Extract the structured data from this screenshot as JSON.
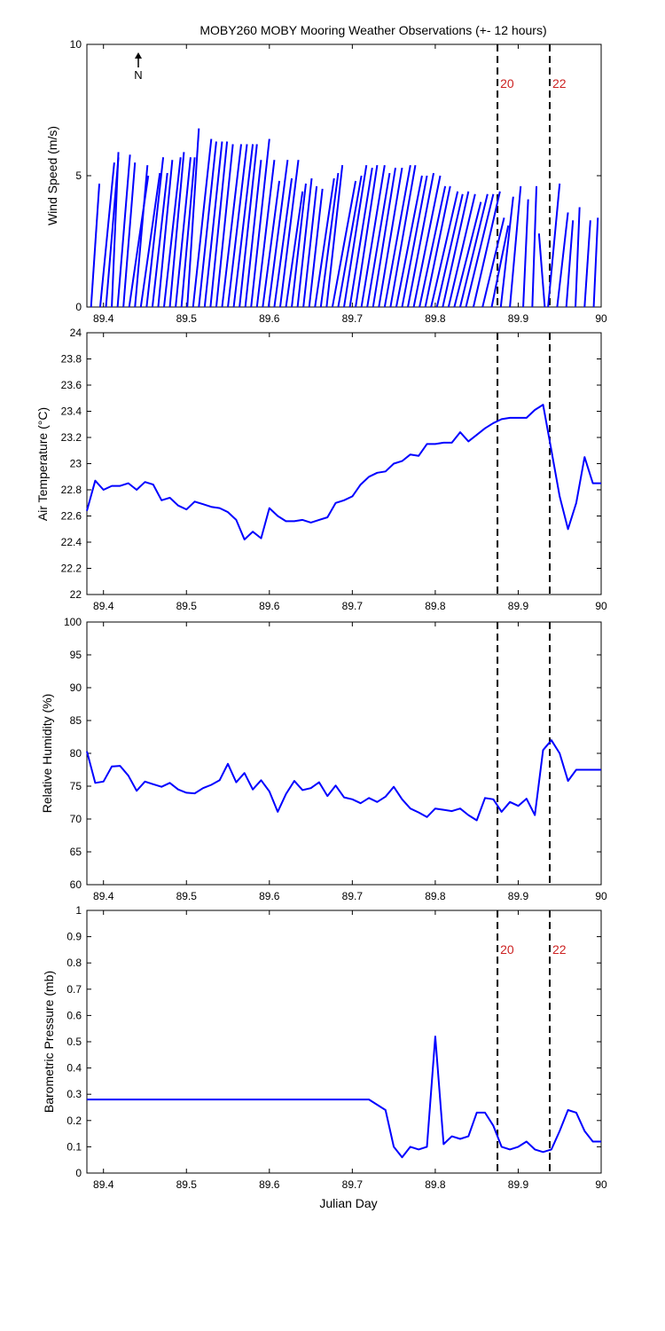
{
  "figure": {
    "title": "MOBY260 MOBY Mooring Weather Observations (+- 12 hours)",
    "north_label": "N",
    "line_color": "#0000ff",
    "marker_label_color": "#cc2222"
  },
  "chart_data": [
    {
      "type": "line",
      "ylabel": "Wind Speed (m/s)",
      "xlabel": "",
      "xlim": [
        89.38,
        90.0
      ],
      "ylim": [
        0,
        10
      ],
      "xticks": [
        89.4,
        89.5,
        89.6,
        89.7,
        89.8,
        89.9,
        90
      ],
      "xtick_labels": [
        "89.4",
        "89.5",
        "89.6",
        "89.7",
        "89.8",
        "89.9",
        "90"
      ],
      "yticks": [
        0,
        5,
        10
      ],
      "ytick_labels": [
        "0",
        "5",
        "10"
      ],
      "grid": false,
      "vertical_markers": [
        {
          "x": 89.875,
          "label": "20"
        },
        {
          "x": 89.938,
          "label": "22"
        }
      ],
      "wind_sticks": [
        {
          "x": 89.385,
          "x2": 89.395,
          "y2": 4.7
        },
        {
          "x": 89.396,
          "x2": 89.413,
          "y2": 5.5
        },
        {
          "x": 89.403,
          "x2": 89.418,
          "y2": 5.7
        },
        {
          "x": 89.41,
          "x2": 89.418,
          "y2": 5.9
        },
        {
          "x": 89.417,
          "x2": 89.432,
          "y2": 5.8
        },
        {
          "x": 89.424,
          "x2": 89.438,
          "y2": 5.5
        },
        {
          "x": 89.431,
          "x2": 89.454,
          "y2": 5.0
        },
        {
          "x": 89.438,
          "x2": 89.453,
          "y2": 5.4
        },
        {
          "x": 89.445,
          "x2": 89.468,
          "y2": 5.1
        },
        {
          "x": 89.452,
          "x2": 89.472,
          "y2": 5.7
        },
        {
          "x": 89.459,
          "x2": 89.477,
          "y2": 5.1
        },
        {
          "x": 89.466,
          "x2": 89.483,
          "y2": 5.6
        },
        {
          "x": 89.473,
          "x2": 89.493,
          "y2": 5.7
        },
        {
          "x": 89.48,
          "x2": 89.497,
          "y2": 5.9
        },
        {
          "x": 89.487,
          "x2": 89.505,
          "y2": 5.7
        },
        {
          "x": 89.494,
          "x2": 89.51,
          "y2": 5.7
        },
        {
          "x": 89.501,
          "x2": 89.515,
          "y2": 6.8
        },
        {
          "x": 89.508,
          "x2": 89.53,
          "y2": 6.4
        },
        {
          "x": 89.515,
          "x2": 89.536,
          "y2": 6.3
        },
        {
          "x": 89.522,
          "x2": 89.543,
          "y2": 6.3
        },
        {
          "x": 89.529,
          "x2": 89.549,
          "y2": 6.3
        },
        {
          "x": 89.536,
          "x2": 89.556,
          "y2": 6.2
        },
        {
          "x": 89.543,
          "x2": 89.566,
          "y2": 6.2
        },
        {
          "x": 89.55,
          "x2": 89.573,
          "y2": 6.2
        },
        {
          "x": 89.557,
          "x2": 89.58,
          "y2": 6.2
        },
        {
          "x": 89.564,
          "x2": 89.585,
          "y2": 6.2
        },
        {
          "x": 89.571,
          "x2": 89.59,
          "y2": 5.6
        },
        {
          "x": 89.578,
          "x2": 89.6,
          "y2": 6.4
        },
        {
          "x": 89.585,
          "x2": 89.606,
          "y2": 5.6
        },
        {
          "x": 89.592,
          "x2": 89.612,
          "y2": 4.8
        },
        {
          "x": 89.599,
          "x2": 89.622,
          "y2": 5.6
        },
        {
          "x": 89.606,
          "x2": 89.627,
          "y2": 4.9
        },
        {
          "x": 89.613,
          "x2": 89.635,
          "y2": 5.6
        },
        {
          "x": 89.62,
          "x2": 89.64,
          "y2": 4.4
        },
        {
          "x": 89.627,
          "x2": 89.644,
          "y2": 4.7
        },
        {
          "x": 89.634,
          "x2": 89.651,
          "y2": 4.9
        },
        {
          "x": 89.641,
          "x2": 89.657,
          "y2": 4.6
        },
        {
          "x": 89.648,
          "x2": 89.664,
          "y2": 4.5
        },
        {
          "x": 89.655,
          "x2": 89.678,
          "y2": 4.9
        },
        {
          "x": 89.662,
          "x2": 89.683,
          "y2": 5.1
        },
        {
          "x": 89.669,
          "x2": 89.688,
          "y2": 5.4
        },
        {
          "x": 89.676,
          "x2": 89.704,
          "y2": 4.8
        },
        {
          "x": 89.683,
          "x2": 89.711,
          "y2": 5.0
        },
        {
          "x": 89.69,
          "x2": 89.717,
          "y2": 5.4
        },
        {
          "x": 89.697,
          "x2": 89.724,
          "y2": 5.3
        },
        {
          "x": 89.704,
          "x2": 89.73,
          "y2": 5.4
        },
        {
          "x": 89.711,
          "x2": 89.739,
          "y2": 5.4
        },
        {
          "x": 89.718,
          "x2": 89.745,
          "y2": 5.1
        },
        {
          "x": 89.725,
          "x2": 89.752,
          "y2": 5.3
        },
        {
          "x": 89.732,
          "x2": 89.76,
          "y2": 5.3
        },
        {
          "x": 89.739,
          "x2": 89.77,
          "y2": 5.4
        },
        {
          "x": 89.746,
          "x2": 89.776,
          "y2": 5.4
        },
        {
          "x": 89.753,
          "x2": 89.784,
          "y2": 5.0
        },
        {
          "x": 89.76,
          "x2": 89.79,
          "y2": 5.0
        },
        {
          "x": 89.767,
          "x2": 89.798,
          "y2": 5.1
        },
        {
          "x": 89.774,
          "x2": 89.806,
          "y2": 5.0
        },
        {
          "x": 89.781,
          "x2": 89.812,
          "y2": 4.6
        },
        {
          "x": 89.788,
          "x2": 89.818,
          "y2": 4.6
        },
        {
          "x": 89.795,
          "x2": 89.827,
          "y2": 4.4
        },
        {
          "x": 89.802,
          "x2": 89.833,
          "y2": 4.3
        },
        {
          "x": 89.809,
          "x2": 89.84,
          "y2": 4.4
        },
        {
          "x": 89.816,
          "x2": 89.848,
          "y2": 4.3
        },
        {
          "x": 89.823,
          "x2": 89.855,
          "y2": 4.0
        },
        {
          "x": 89.83,
          "x2": 89.863,
          "y2": 4.3
        },
        {
          "x": 89.837,
          "x2": 89.87,
          "y2": 4.3
        },
        {
          "x": 89.846,
          "x2": 89.878,
          "y2": 4.4
        },
        {
          "x": 89.857,
          "x2": 89.883,
          "y2": 3.4
        },
        {
          "x": 89.868,
          "x2": 89.888,
          "y2": 3.1
        },
        {
          "x": 89.879,
          "x2": 89.894,
          "y2": 4.2
        },
        {
          "x": 89.89,
          "x2": 89.903,
          "y2": 4.6
        },
        {
          "x": 89.906,
          "x2": 89.912,
          "y2": 4.1
        },
        {
          "x": 89.917,
          "x2": 89.922,
          "y2": 4.6
        },
        {
          "x": 89.932,
          "x2": 89.925,
          "y2": 2.8
        },
        {
          "x": 89.936,
          "x2": 89.95,
          "y2": 4.7
        },
        {
          "x": 89.947,
          "x2": 89.96,
          "y2": 3.6
        },
        {
          "x": 89.958,
          "x2": 89.966,
          "y2": 3.3
        },
        {
          "x": 89.969,
          "x2": 89.974,
          "y2": 3.8
        },
        {
          "x": 89.98,
          "x2": 89.987,
          "y2": 3.3
        },
        {
          "x": 89.991,
          "x2": 89.996,
          "y2": 3.4
        }
      ]
    },
    {
      "type": "line",
      "ylabel": "Air Temperature (°C)",
      "xlabel": "",
      "xlim": [
        89.38,
        90.0
      ],
      "ylim": [
        22,
        24
      ],
      "xticks": [
        89.4,
        89.5,
        89.6,
        89.7,
        89.8,
        89.9,
        90
      ],
      "xtick_labels": [
        "89.4",
        "89.5",
        "89.6",
        "89.7",
        "89.8",
        "89.9",
        "90"
      ],
      "yticks": [
        22,
        22.2,
        22.4,
        22.6,
        22.8,
        23,
        23.2,
        23.4,
        23.6,
        23.8,
        24
      ],
      "ytick_labels": [
        "22",
        "22.2",
        "22.4",
        "22.6",
        "22.8",
        "23",
        "23.2",
        "23.4",
        "23.6",
        "23.8",
        "24"
      ],
      "grid": false,
      "vertical_markers": [
        {
          "x": 89.875,
          "label": ""
        },
        {
          "x": 89.938,
          "label": ""
        }
      ],
      "x": [
        89.38,
        89.39,
        89.4,
        89.41,
        89.42,
        89.43,
        89.44,
        89.45,
        89.46,
        89.47,
        89.48,
        89.49,
        89.5,
        89.51,
        89.52,
        89.53,
        89.54,
        89.55,
        89.56,
        89.57,
        89.58,
        89.59,
        89.6,
        89.61,
        89.62,
        89.63,
        89.64,
        89.65,
        89.66,
        89.67,
        89.68,
        89.69,
        89.7,
        89.71,
        89.72,
        89.73,
        89.74,
        89.75,
        89.76,
        89.77,
        89.78,
        89.79,
        89.8,
        89.81,
        89.82,
        89.83,
        89.84,
        89.85,
        89.86,
        89.87,
        89.88,
        89.89,
        89.9,
        89.91,
        89.92,
        89.93,
        89.94,
        89.95,
        89.96,
        89.97,
        89.98,
        89.99,
        90.0
      ],
      "y": [
        22.64,
        22.87,
        22.8,
        22.83,
        22.83,
        22.85,
        22.8,
        22.86,
        22.84,
        22.72,
        22.74,
        22.68,
        22.65,
        22.71,
        22.69,
        22.67,
        22.66,
        22.63,
        22.57,
        22.42,
        22.48,
        22.43,
        22.66,
        22.6,
        22.56,
        22.56,
        22.57,
        22.55,
        22.57,
        22.59,
        22.7,
        22.72,
        22.75,
        22.84,
        22.9,
        22.93,
        22.94,
        23.0,
        23.02,
        23.07,
        23.06,
        23.15,
        23.15,
        23.16,
        23.16,
        23.24,
        23.17,
        23.22,
        23.27,
        23.31,
        23.34,
        23.35,
        23.35,
        23.35,
        23.41,
        23.45,
        23.1,
        22.75,
        22.5,
        22.7,
        23.05,
        22.85,
        22.85
      ]
    },
    {
      "type": "line",
      "ylabel": "Relative Humidity (%)",
      "xlabel": "",
      "xlim": [
        89.38,
        90.0
      ],
      "ylim": [
        60,
        100
      ],
      "xticks": [
        89.4,
        89.5,
        89.6,
        89.7,
        89.8,
        89.9,
        90
      ],
      "xtick_labels": [
        "89.4",
        "89.5",
        "89.6",
        "89.7",
        "89.8",
        "89.9",
        "90"
      ],
      "yticks": [
        60,
        65,
        70,
        75,
        80,
        85,
        90,
        95,
        100
      ],
      "ytick_labels": [
        "60",
        "65",
        "70",
        "75",
        "80",
        "85",
        "90",
        "95",
        "100"
      ],
      "grid": false,
      "vertical_markers": [
        {
          "x": 89.875,
          "label": ""
        },
        {
          "x": 89.938,
          "label": ""
        }
      ],
      "x": [
        89.38,
        89.39,
        89.4,
        89.41,
        89.42,
        89.43,
        89.44,
        89.45,
        89.46,
        89.47,
        89.48,
        89.49,
        89.5,
        89.51,
        89.52,
        89.53,
        89.54,
        89.55,
        89.56,
        89.57,
        89.58,
        89.59,
        89.6,
        89.61,
        89.62,
        89.63,
        89.64,
        89.65,
        89.66,
        89.67,
        89.68,
        89.69,
        89.7,
        89.71,
        89.72,
        89.73,
        89.74,
        89.75,
        89.76,
        89.77,
        89.78,
        89.79,
        89.8,
        89.81,
        89.82,
        89.83,
        89.84,
        89.85,
        89.86,
        89.87,
        89.88,
        89.89,
        89.9,
        89.91,
        89.92,
        89.93,
        89.94,
        89.95,
        89.96,
        89.97,
        89.98,
        89.99,
        90.0
      ],
      "y": [
        80.3,
        75.5,
        75.7,
        78.0,
        78.1,
        76.6,
        74.3,
        75.7,
        75.3,
        74.9,
        75.5,
        74.5,
        74.0,
        73.9,
        74.7,
        75.2,
        75.9,
        78.4,
        75.6,
        77.0,
        74.5,
        75.9,
        74.2,
        71.1,
        73.8,
        75.8,
        74.4,
        74.7,
        75.6,
        73.5,
        75.1,
        73.3,
        73.0,
        72.4,
        73.2,
        72.6,
        73.4,
        74.9,
        73.0,
        71.6,
        71.0,
        70.3,
        71.6,
        71.4,
        71.2,
        71.6,
        70.6,
        69.8,
        73.2,
        73.0,
        71.1,
        72.6,
        72.0,
        73.1,
        70.6,
        80.5,
        82.0,
        80.0,
        75.8,
        77.5,
        77.5,
        77.5,
        77.5
      ]
    },
    {
      "type": "line",
      "ylabel": "Barometric Pressure (mb)",
      "xlabel": "Julian Day",
      "xlim": [
        89.38,
        90.0
      ],
      "ylim": [
        0,
        1
      ],
      "xticks": [
        89.4,
        89.5,
        89.6,
        89.7,
        89.8,
        89.9,
        90
      ],
      "xtick_labels": [
        "89.4",
        "89.5",
        "89.6",
        "89.7",
        "89.8",
        "89.9",
        "90"
      ],
      "yticks": [
        0,
        0.1,
        0.2,
        0.3,
        0.4,
        0.5,
        0.6,
        0.7,
        0.8,
        0.9,
        1
      ],
      "ytick_labels": [
        "0",
        "0.1",
        "0.2",
        "0.3",
        "0.4",
        "0.5",
        "0.6",
        "0.7",
        "0.8",
        "0.9",
        "1"
      ],
      "grid": false,
      "vertical_markers": [
        {
          "x": 89.875,
          "label": "20"
        },
        {
          "x": 89.938,
          "label": "22"
        }
      ],
      "x": [
        89.38,
        89.72,
        89.74,
        89.75,
        89.76,
        89.77,
        89.78,
        89.79,
        89.8,
        89.81,
        89.82,
        89.83,
        89.84,
        89.85,
        89.86,
        89.87,
        89.88,
        89.89,
        89.9,
        89.91,
        89.92,
        89.93,
        89.94,
        89.95,
        89.96,
        89.97,
        89.98,
        89.99,
        90.0
      ],
      "y": [
        0.28,
        0.28,
        0.24,
        0.1,
        0.06,
        0.1,
        0.09,
        0.1,
        0.52,
        0.11,
        0.14,
        0.13,
        0.14,
        0.23,
        0.23,
        0.18,
        0.1,
        0.09,
        0.1,
        0.12,
        0.09,
        0.08,
        0.09,
        0.16,
        0.24,
        0.23,
        0.16,
        0.12,
        0.12
      ]
    }
  ]
}
